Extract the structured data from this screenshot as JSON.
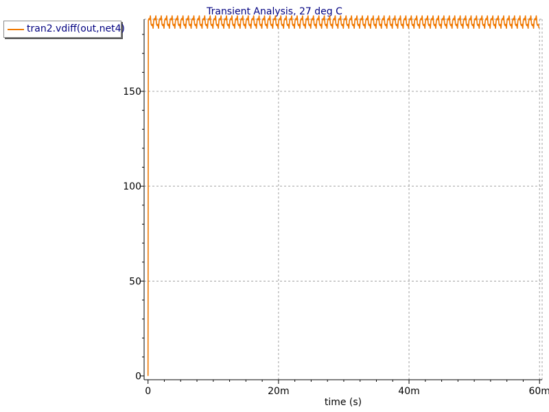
{
  "chart_data": {
    "type": "line",
    "title": "Transient Analysis, 27 deg C",
    "xlabel": "time (s)",
    "ylabel": "",
    "xlim": [
      -0.0006,
      0.0604
    ],
    "ylim": [
      -2,
      188
    ],
    "x_ticks": [
      {
        "value": 0,
        "label": "0"
      },
      {
        "value": 0.02,
        "label": "20m"
      },
      {
        "value": 0.04,
        "label": "40m"
      },
      {
        "value": 0.06,
        "label": "60m"
      }
    ],
    "y_ticks": [
      {
        "value": 0,
        "label": "0"
      },
      {
        "value": 50,
        "label": "50"
      },
      {
        "value": 100,
        "label": "100"
      },
      {
        "value": 150,
        "label": "150"
      }
    ],
    "grid": true,
    "legend_position": "top-left",
    "series": [
      {
        "name": "tran2.vdiff(out,net4)",
        "color": "#f07800",
        "x": [
          0,
          5e-05,
          0.06
        ],
        "y": [
          0,
          186.5,
          186.5
        ],
        "ripple": {
          "min": 182.5,
          "max": 190.5,
          "period": 0.000833
        }
      }
    ]
  },
  "colors": {
    "title": "#000080",
    "axis": "#000000",
    "grid": "#a0a0a0",
    "background": "#ffffff"
  }
}
